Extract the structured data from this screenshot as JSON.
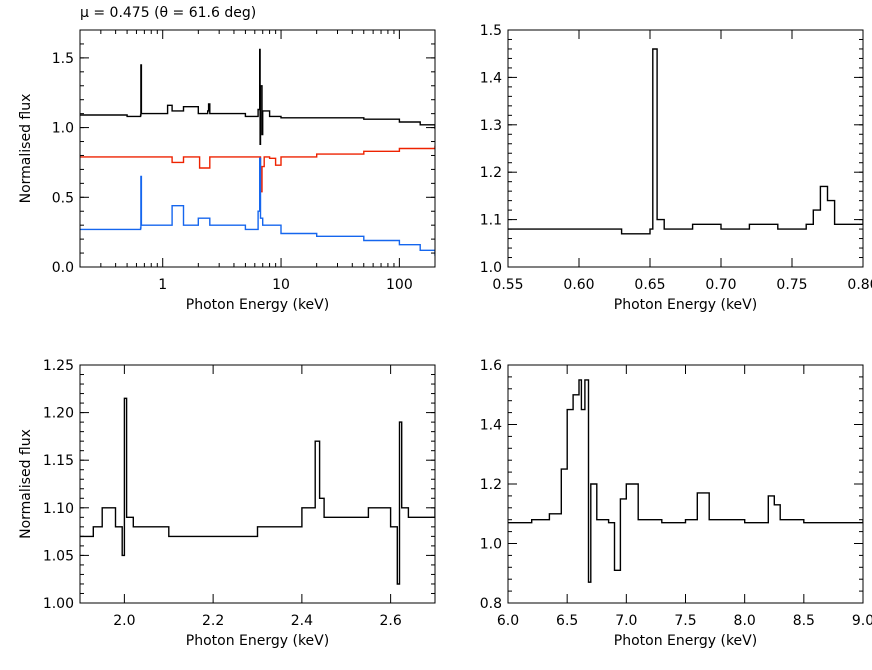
{
  "figure_title": "μ = 0.475 (θ = 61.6 deg)",
  "chart_data": [
    {
      "id": "broadband",
      "type": "line",
      "xlabel": "Photon Energy (keV)",
      "ylabel": "Normalised flux",
      "xscale": "log",
      "xlim": [
        0.2,
        200
      ],
      "ylim": [
        0.0,
        1.7
      ],
      "xticks": [
        1,
        10,
        100
      ],
      "xtick_labels": [
        "1",
        "10",
        "100"
      ],
      "yticks": [
        0.0,
        0.5,
        1.0,
        1.5
      ],
      "ytick_labels": [
        "0.0",
        "0.5",
        "1.0",
        "1.5"
      ],
      "series": [
        {
          "color": "#000000",
          "x": [
            0.2,
            0.5,
            0.65,
            0.654,
            0.66,
            1.0,
            1.1,
            1.2,
            1.5,
            2.0,
            2.4,
            2.44,
            2.5,
            3.0,
            5.0,
            6.4,
            6.6,
            6.65,
            6.7,
            6.9,
            7.0,
            8.0,
            10,
            20,
            50,
            100,
            150,
            200
          ],
          "y": [
            1.09,
            1.08,
            1.09,
            1.45,
            1.1,
            1.1,
            1.16,
            1.12,
            1.15,
            1.1,
            1.12,
            1.17,
            1.1,
            1.1,
            1.08,
            1.13,
            1.56,
            0.88,
            1.3,
            0.95,
            1.12,
            1.08,
            1.07,
            1.07,
            1.06,
            1.04,
            1.02,
            0.99
          ]
        },
        {
          "color": "#ee2200",
          "x": [
            0.2,
            1.0,
            1.2,
            1.5,
            2.0,
            2.05,
            2.5,
            5.0,
            6.5,
            6.7,
            6.9,
            7.2,
            8.0,
            9.0,
            10,
            20,
            50,
            100,
            200
          ],
          "y": [
            0.79,
            0.79,
            0.75,
            0.79,
            0.79,
            0.71,
            0.79,
            0.79,
            0.79,
            0.54,
            0.72,
            0.79,
            0.78,
            0.73,
            0.79,
            0.81,
            0.83,
            0.85,
            0.87
          ]
        },
        {
          "color": "#1566ee",
          "x": [
            0.2,
            0.5,
            0.65,
            0.654,
            0.66,
            1.0,
            1.2,
            1.5,
            2.0,
            2.5,
            3.0,
            5.0,
            6.4,
            6.6,
            6.7,
            7.0,
            10,
            20,
            50,
            100,
            150,
            200
          ],
          "y": [
            0.27,
            0.27,
            0.28,
            0.65,
            0.3,
            0.3,
            0.44,
            0.3,
            0.35,
            0.3,
            0.3,
            0.27,
            0.4,
            0.78,
            0.35,
            0.3,
            0.24,
            0.22,
            0.19,
            0.16,
            0.12,
            0.08
          ]
        }
      ]
    },
    {
      "id": "zoom-0.55-0.80",
      "type": "line",
      "xlabel": "Photon Energy (keV)",
      "ylabel": "",
      "xscale": "linear",
      "xlim": [
        0.55,
        0.8
      ],
      "ylim": [
        1.0,
        1.5
      ],
      "xticks": [
        0.55,
        0.6,
        0.65,
        0.7,
        0.75,
        0.8
      ],
      "xtick_labels": [
        "0.55",
        "0.60",
        "0.65",
        "0.70",
        "0.75",
        "0.80"
      ],
      "yticks": [
        1.0,
        1.1,
        1.2,
        1.3,
        1.4,
        1.5
      ],
      "ytick_labels": [
        "1.0",
        "1.1",
        "1.2",
        "1.3",
        "1.4",
        "1.5"
      ],
      "series": [
        {
          "color": "#000000",
          "x": [
            0.55,
            0.57,
            0.59,
            0.61,
            0.63,
            0.645,
            0.65,
            0.652,
            0.655,
            0.66,
            0.68,
            0.7,
            0.72,
            0.74,
            0.76,
            0.765,
            0.77,
            0.775,
            0.78,
            0.79,
            0.8
          ],
          "y": [
            1.08,
            1.08,
            1.08,
            1.08,
            1.07,
            1.07,
            1.08,
            1.46,
            1.1,
            1.08,
            1.09,
            1.08,
            1.09,
            1.08,
            1.09,
            1.12,
            1.17,
            1.14,
            1.09,
            1.09,
            1.1
          ]
        }
      ]
    },
    {
      "id": "zoom-1.9-2.7",
      "type": "line",
      "xlabel": "Photon Energy (keV)",
      "ylabel": "Normalised flux",
      "xscale": "linear",
      "xlim": [
        1.9,
        2.7
      ],
      "ylim": [
        1.0,
        1.25
      ],
      "xticks": [
        2.0,
        2.2,
        2.4,
        2.6
      ],
      "xtick_labels": [
        "2.0",
        "2.2",
        "2.4",
        "2.6"
      ],
      "yticks": [
        1.0,
        1.05,
        1.1,
        1.15,
        1.2,
        1.25
      ],
      "ytick_labels": [
        "1.00",
        "1.05",
        "1.10",
        "1.15",
        "1.20",
        "1.25"
      ],
      "series": [
        {
          "color": "#000000",
          "x": [
            1.9,
            1.93,
            1.95,
            1.98,
            1.995,
            2.0,
            2.005,
            2.02,
            2.1,
            2.2,
            2.3,
            2.4,
            2.43,
            2.44,
            2.45,
            2.5,
            2.55,
            2.6,
            2.615,
            2.62,
            2.625,
            2.64,
            2.7
          ],
          "y": [
            1.07,
            1.08,
            1.1,
            1.08,
            1.05,
            1.215,
            1.09,
            1.08,
            1.07,
            1.07,
            1.08,
            1.1,
            1.17,
            1.11,
            1.09,
            1.09,
            1.1,
            1.08,
            1.02,
            1.19,
            1.1,
            1.09,
            1.1
          ]
        }
      ]
    },
    {
      "id": "zoom-6.0-9.0",
      "type": "line",
      "xlabel": "Photon Energy (keV)",
      "ylabel": "",
      "xscale": "linear",
      "xlim": [
        6.0,
        9.0
      ],
      "ylim": [
        0.8,
        1.6
      ],
      "xticks": [
        6.0,
        6.5,
        7.0,
        7.5,
        8.0,
        8.5,
        9.0
      ],
      "xtick_labels": [
        "6.0",
        "6.5",
        "7.0",
        "7.5",
        "8.0",
        "8.5",
        "9.0"
      ],
      "yticks": [
        0.8,
        1.0,
        1.2,
        1.4,
        1.6
      ],
      "ytick_labels": [
        "0.8",
        "1.0",
        "1.2",
        "1.4",
        "1.6"
      ],
      "series": [
        {
          "color": "#000000",
          "x": [
            6.0,
            6.2,
            6.35,
            6.45,
            6.5,
            6.55,
            6.6,
            6.62,
            6.65,
            6.68,
            6.7,
            6.75,
            6.85,
            6.9,
            6.95,
            7.0,
            7.1,
            7.3,
            7.5,
            7.6,
            7.7,
            8.0,
            8.2,
            8.25,
            8.3,
            8.5,
            9.0
          ],
          "y": [
            1.07,
            1.08,
            1.1,
            1.25,
            1.45,
            1.5,
            1.55,
            1.45,
            1.55,
            0.87,
            1.2,
            1.08,
            1.07,
            0.91,
            1.15,
            1.2,
            1.08,
            1.07,
            1.08,
            1.17,
            1.08,
            1.07,
            1.16,
            1.13,
            1.08,
            1.07,
            1.08
          ]
        }
      ]
    }
  ]
}
